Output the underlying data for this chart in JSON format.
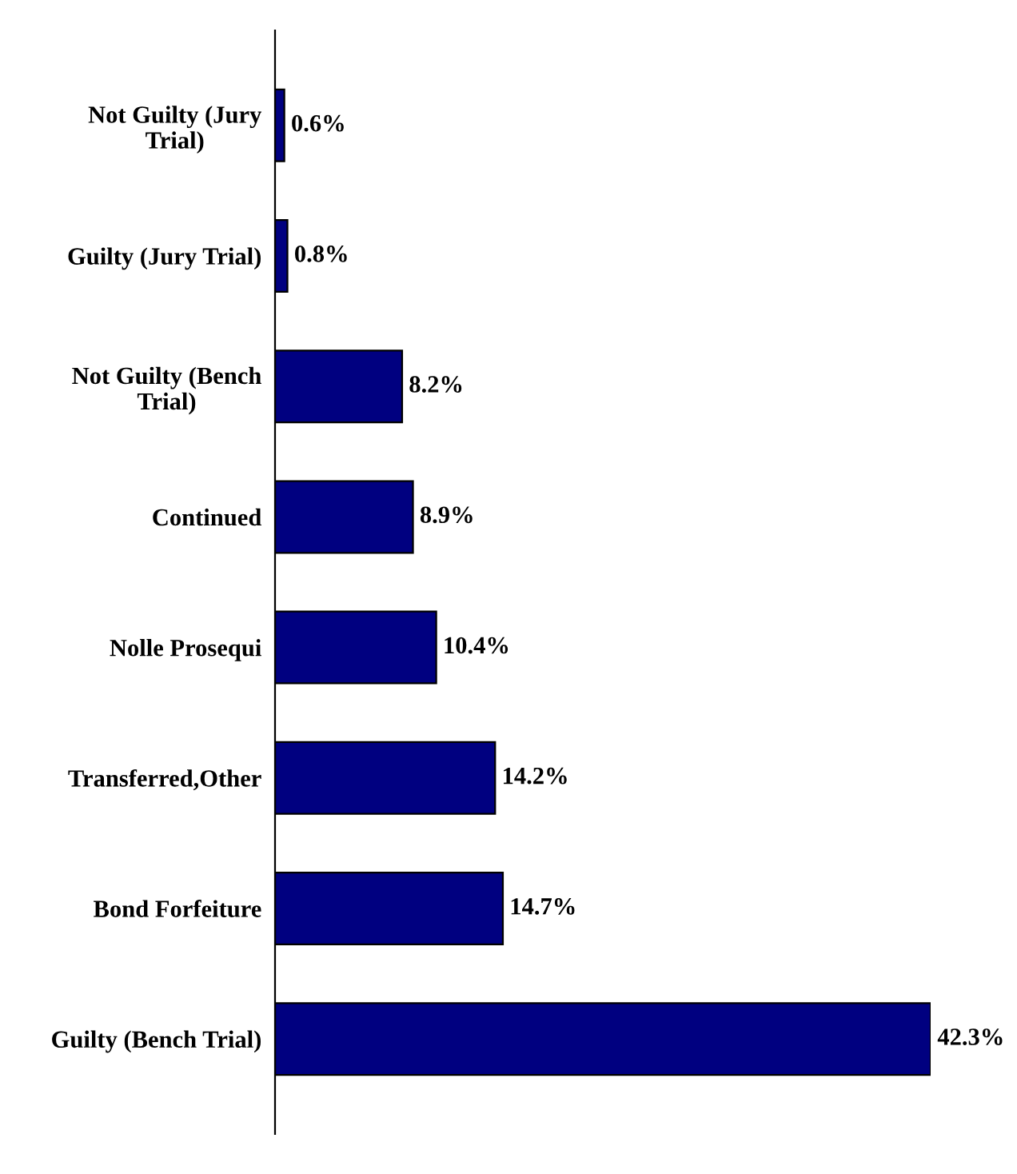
{
  "chart_data": {
    "type": "bar",
    "orientation": "horizontal",
    "categories": [
      "Not Guilty (Jury\nTrial)",
      "Guilty (Jury Trial)",
      "Not Guilty (Bench\nTrial)",
      "Continued",
      "Nolle Prosequi",
      "Transferred,Other",
      "Bond Forfeiture",
      "Guilty (Bench Trial)"
    ],
    "values": [
      0.6,
      0.8,
      8.2,
      8.9,
      10.4,
      14.2,
      14.7,
      42.3
    ],
    "value_labels": [
      "0.6%",
      "0.8%",
      "8.2%",
      "8.9%",
      "10.4%",
      "14.2%",
      "14.7%",
      "42.3%"
    ],
    "color": "#000080",
    "grid": false,
    "legend": false
  }
}
